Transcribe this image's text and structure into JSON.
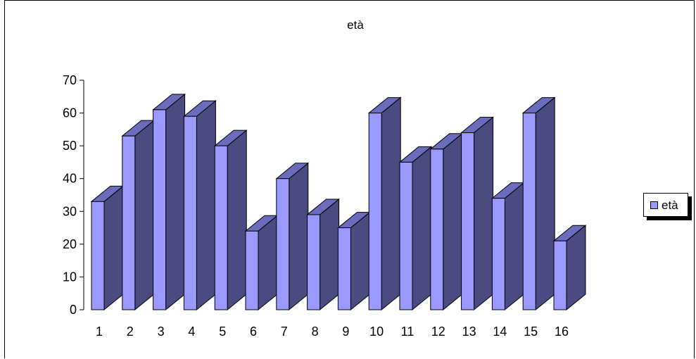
{
  "chart_data": {
    "type": "bar",
    "title": "età",
    "categories": [
      "1",
      "2",
      "3",
      "4",
      "5",
      "6",
      "7",
      "8",
      "9",
      "10",
      "11",
      "12",
      "13",
      "14",
      "15",
      "16"
    ],
    "series": [
      {
        "name": "età",
        "values": [
          33,
          53,
          61,
          59,
          50,
          24,
          40,
          29,
          25,
          60,
          45,
          49,
          54,
          34,
          60,
          21
        ]
      }
    ],
    "ylim": [
      0,
      70
    ],
    "yticks": [
      "0",
      "10",
      "20",
      "30",
      "40",
      "50",
      "60",
      "70"
    ],
    "grid": false,
    "legend": "right",
    "three_d": true,
    "colors": {
      "front": "#9999ff",
      "side": "#4b4b82",
      "top": "#6c6cbf",
      "outline": "#000000"
    }
  }
}
